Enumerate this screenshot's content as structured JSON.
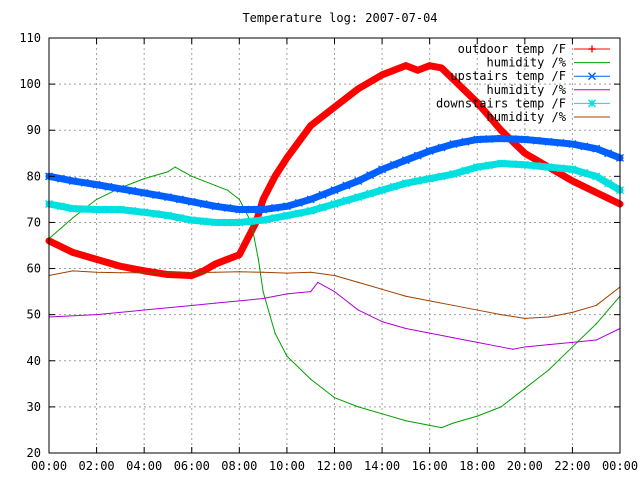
{
  "chart_data": {
    "type": "line",
    "title": "Temperature log: 2007-07-04",
    "xlabel": "",
    "ylabel": "",
    "xlim": [
      0,
      24
    ],
    "ylim": [
      20,
      110
    ],
    "grid": true,
    "legend_position": "top-right",
    "x_ticks": [
      {
        "value": 0,
        "label": "00:00"
      },
      {
        "value": 2,
        "label": "02:00"
      },
      {
        "value": 4,
        "label": "04:00"
      },
      {
        "value": 6,
        "label": "06:00"
      },
      {
        "value": 8,
        "label": "08:00"
      },
      {
        "value": 10,
        "label": "10:00"
      },
      {
        "value": 12,
        "label": "12:00"
      },
      {
        "value": 14,
        "label": "14:00"
      },
      {
        "value": 16,
        "label": "16:00"
      },
      {
        "value": 18,
        "label": "18:00"
      },
      {
        "value": 20,
        "label": "20:00"
      },
      {
        "value": 22,
        "label": "22:00"
      },
      {
        "value": 24,
        "label": "00:00"
      }
    ],
    "y_ticks": [
      {
        "value": 20,
        "label": "20"
      },
      {
        "value": 30,
        "label": "30"
      },
      {
        "value": 40,
        "label": "40"
      },
      {
        "value": 50,
        "label": "50"
      },
      {
        "value": 60,
        "label": "60"
      },
      {
        "value": 70,
        "label": "70"
      },
      {
        "value": 80,
        "label": "80"
      },
      {
        "value": 90,
        "label": "90"
      },
      {
        "value": 100,
        "label": "100"
      },
      {
        "value": 110,
        "label": "110"
      }
    ],
    "series": [
      {
        "name": "outdoor temp /F",
        "color": "#ff0000",
        "marker": "plus",
        "x": [
          0,
          1,
          2,
          3,
          4,
          5,
          6,
          6.5,
          7,
          8,
          8.7,
          9,
          9.5,
          10,
          11,
          12,
          13,
          14,
          15,
          15.5,
          16,
          16.5,
          17,
          18,
          19,
          20,
          21,
          22,
          23,
          24
        ],
        "y": [
          66,
          63.5,
          62,
          60.5,
          59.5,
          58.7,
          58.5,
          59.5,
          61,
          63,
          70,
          75,
          80,
          84,
          91,
          95,
          99,
          102,
          104,
          103,
          104,
          103.5,
          101,
          96,
          90,
          85,
          82,
          79,
          76.5,
          74
        ]
      },
      {
        "name": "humidity /%",
        "color": "#00a000",
        "marker": "none",
        "x": [
          0,
          1,
          2,
          3,
          4,
          5,
          5.3,
          6,
          6.5,
          7,
          7.5,
          8,
          8.5,
          8.8,
          9,
          9.5,
          10,
          11,
          12,
          13,
          14,
          15,
          16,
          16.5,
          17,
          18,
          19,
          20,
          21,
          22,
          23,
          24
        ],
        "y": [
          66.5,
          71,
          75,
          77.5,
          79.5,
          81,
          82,
          80,
          79,
          78,
          77,
          75,
          70,
          62,
          55,
          46,
          41,
          36,
          32,
          30,
          28.5,
          27,
          26,
          25.5,
          26.5,
          28,
          30,
          34,
          38,
          43,
          48,
          54
        ]
      },
      {
        "name": "upstairs temp /F",
        "color": "#0060ff",
        "marker": "cross",
        "x": [
          0,
          1,
          2,
          3,
          4,
          5,
          6,
          7,
          8,
          9,
          10,
          11,
          12,
          13,
          14,
          15,
          16,
          17,
          18,
          19,
          20,
          21,
          22,
          23,
          24
        ],
        "y": [
          80,
          79,
          78.2,
          77.3,
          76.4,
          75.5,
          74.5,
          73.5,
          72.8,
          72.8,
          73.5,
          75,
          77,
          79,
          81.5,
          83.5,
          85.5,
          87,
          88,
          88.2,
          88,
          87.5,
          87,
          86,
          84
        ]
      },
      {
        "name": "humidity /%",
        "color": "#b000d8",
        "marker": "none",
        "x": [
          0,
          2,
          4,
          6,
          7,
          8,
          9,
          10,
          11,
          11.3,
          12,
          13,
          14,
          15,
          16,
          17,
          18,
          19,
          19.5,
          20,
          21,
          22,
          23,
          24
        ],
        "y": [
          49.5,
          50,
          51,
          52,
          52.5,
          53,
          53.5,
          54.5,
          55,
          57,
          55,
          51,
          48.5,
          47,
          46,
          45,
          44,
          43,
          42.5,
          43,
          43.5,
          44,
          44.5,
          47
        ]
      },
      {
        "name": "downstairs temp /F",
        "color": "#00e0e0",
        "marker": "star",
        "x": [
          0,
          1,
          2,
          3,
          4,
          5,
          6,
          7,
          8,
          9,
          10,
          11,
          12,
          13,
          14,
          15,
          16,
          17,
          18,
          19,
          20,
          21,
          22,
          23,
          24
        ],
        "y": [
          74,
          73,
          72.8,
          72.8,
          72.2,
          71.5,
          70.5,
          70,
          70,
          70.5,
          71.5,
          72.5,
          74,
          75.5,
          77,
          78.5,
          79.5,
          80.5,
          82,
          82.8,
          82.5,
          82,
          81.5,
          80,
          77
        ]
      },
      {
        "name": "humidity /%",
        "color": "#a04000",
        "marker": "none",
        "x": [
          0,
          1,
          2,
          3,
          4,
          5,
          6,
          7,
          8,
          9,
          10,
          11,
          12,
          13,
          14,
          15,
          16,
          17,
          18,
          19,
          20,
          21,
          22,
          23,
          24
        ],
        "y": [
          58.5,
          59.5,
          59.2,
          59.1,
          59.1,
          59.1,
          59.1,
          59.2,
          59.3,
          59.2,
          59,
          59.2,
          58.5,
          57,
          55.5,
          54,
          53,
          52,
          51,
          50,
          49.2,
          49.5,
          50.5,
          52,
          56
        ]
      }
    ]
  }
}
